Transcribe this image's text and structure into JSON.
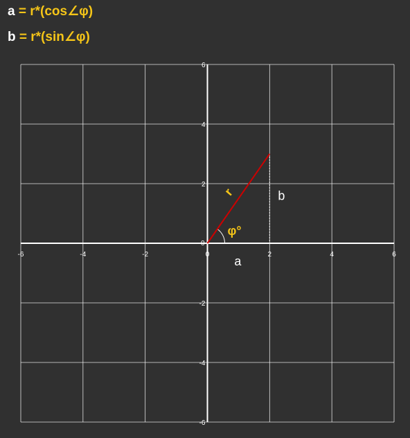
{
  "formulas": {
    "a": {
      "var": "a",
      "expr": "= r*(cos∠φ)"
    },
    "b": {
      "var": "b",
      "expr": "= r*(sin∠φ)"
    }
  },
  "plot": {
    "x_range": [
      -6,
      6
    ],
    "y_range": [
      -6,
      6
    ],
    "grid_step": 2,
    "x_ticks": [
      "-6",
      "-4",
      "-2",
      "0",
      "2",
      "4",
      "6"
    ],
    "y_ticks": [
      "6",
      "4",
      "2",
      "0",
      "-2",
      "-4",
      "-6"
    ],
    "vector_end": [
      2,
      3
    ],
    "labels": {
      "r": "r",
      "phi": "φ°",
      "a": "a",
      "b": "b"
    },
    "colors": {
      "background": "#303030",
      "grid": "#ffffff",
      "vector": "#cc0000",
      "accent": "#f5c518"
    }
  }
}
